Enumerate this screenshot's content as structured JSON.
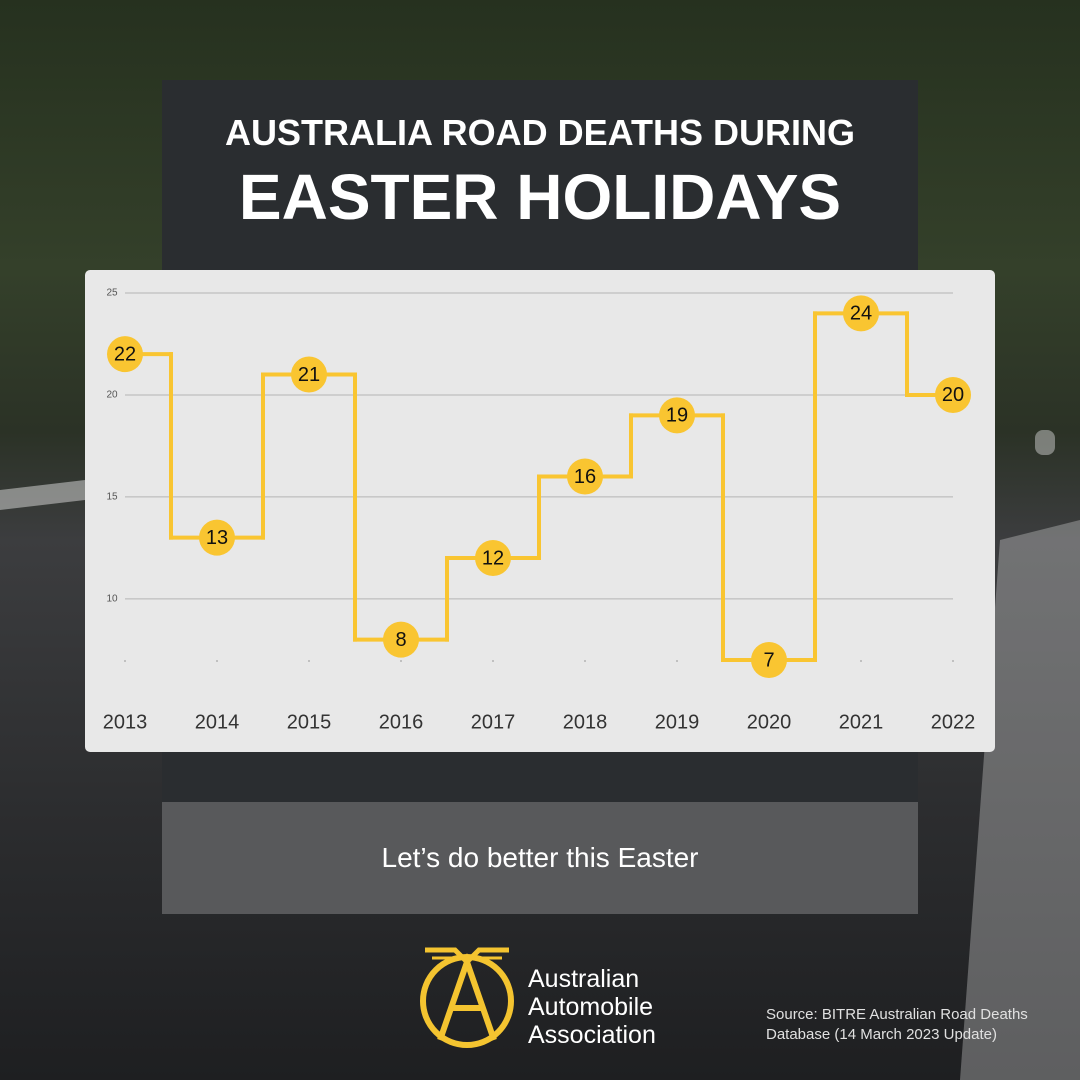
{
  "chart_data": {
    "type": "step-line",
    "title": "AUSTRALIA ROAD DEATHS DURING",
    "subtitle": "EASTER HOLIDAYS",
    "categories": [
      "2013",
      "2014",
      "2015",
      "2016",
      "2017",
      "2018",
      "2019",
      "2020",
      "2021",
      "2022"
    ],
    "series": [
      {
        "color": "#f9c531",
        "values": [
          22,
          13,
          21,
          8,
          12,
          16,
          19,
          7,
          24,
          20
        ]
      }
    ],
    "ylim": [
      7,
      25
    ],
    "yticks": [
      10,
      15,
      20,
      25
    ],
    "grid": true
  },
  "footer_message": "Let’s do better this Easter",
  "logo": {
    "lines": [
      "Australian",
      "Automobile",
      "Association"
    ]
  },
  "source": "Source: BITRE Australian Road Deaths Database (14 March 2023 Update)"
}
